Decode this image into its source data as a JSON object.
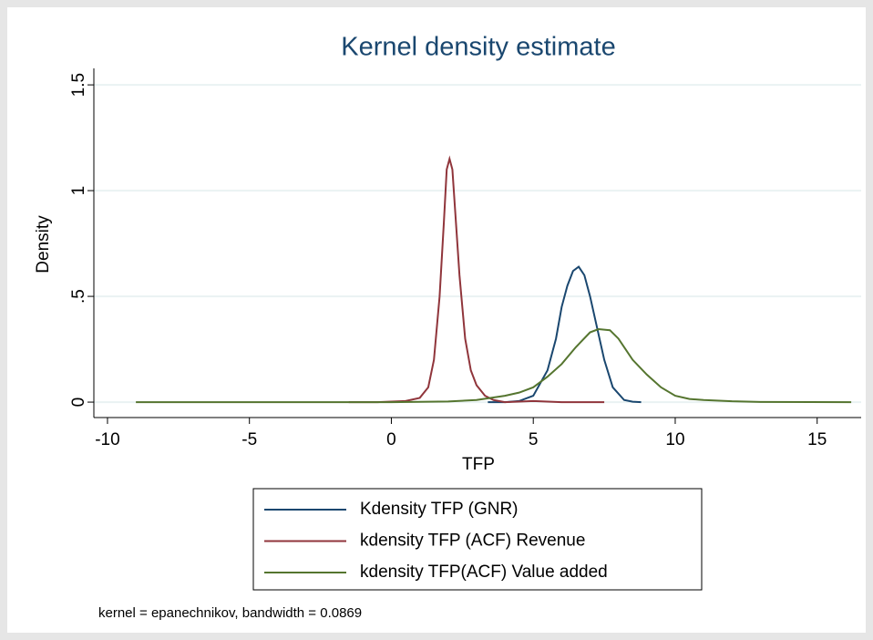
{
  "chart_data": {
    "type": "line",
    "title": "Kernel density estimate",
    "x_label": "TFP",
    "y_label": "Density",
    "note": "kernel = epanechnikov, bandwidth = 0.0869",
    "xlim": [
      -10.48,
      16.55
    ],
    "ylim": [
      -0.073,
      1.578
    ],
    "xticks": [
      -10,
      -5,
      0,
      5,
      10,
      15
    ],
    "yticks": [
      0,
      {
        "value": 0.5,
        "label": ".5"
      },
      1,
      1.5
    ],
    "grid": true,
    "legend": "bottom",
    "series": [
      {
        "name": "Kdensity TFP (GNR)",
        "color": "#1a476f",
        "x": [
          3.4,
          4,
          4.5,
          5,
          5.5,
          5.8,
          6,
          6.2,
          6.4,
          6.6,
          6.8,
          7,
          7.2,
          7.5,
          7.8,
          8.2,
          8.5,
          8.8
        ],
        "values": [
          0,
          0,
          0.005,
          0.03,
          0.15,
          0.3,
          0.45,
          0.55,
          0.62,
          0.64,
          0.6,
          0.5,
          0.38,
          0.2,
          0.07,
          0.01,
          0.002,
          0
        ]
      },
      {
        "name": "kdensity TFP (ACF) Revenue",
        "color": "#90353b",
        "x": [
          -1.5,
          -0.5,
          0.5,
          1,
          1.3,
          1.5,
          1.7,
          1.85,
          1.95,
          2.05,
          2.15,
          2.25,
          2.4,
          2.6,
          2.8,
          3,
          3.3,
          3.6,
          4,
          5,
          6,
          7.5
        ],
        "values": [
          0,
          0,
          0.005,
          0.02,
          0.07,
          0.2,
          0.5,
          0.85,
          1.1,
          1.15,
          1.1,
          0.9,
          0.6,
          0.3,
          0.15,
          0.08,
          0.03,
          0.01,
          0,
          0.005,
          0,
          0
        ]
      },
      {
        "name": "kdensity TFP(ACF) Value added",
        "color": "#55752f",
        "x": [
          -9,
          -5,
          0,
          2,
          3,
          4,
          4.5,
          5,
          5.5,
          6,
          6.5,
          7,
          7.3,
          7.7,
          8,
          8.5,
          9,
          9.5,
          10,
          10.5,
          11,
          12,
          13,
          16.2
        ],
        "values": [
          0,
          0,
          0,
          0.003,
          0.01,
          0.03,
          0.045,
          0.07,
          0.12,
          0.18,
          0.26,
          0.33,
          0.345,
          0.34,
          0.3,
          0.2,
          0.13,
          0.07,
          0.03,
          0.015,
          0.01,
          0.004,
          0.001,
          0
        ]
      }
    ]
  }
}
